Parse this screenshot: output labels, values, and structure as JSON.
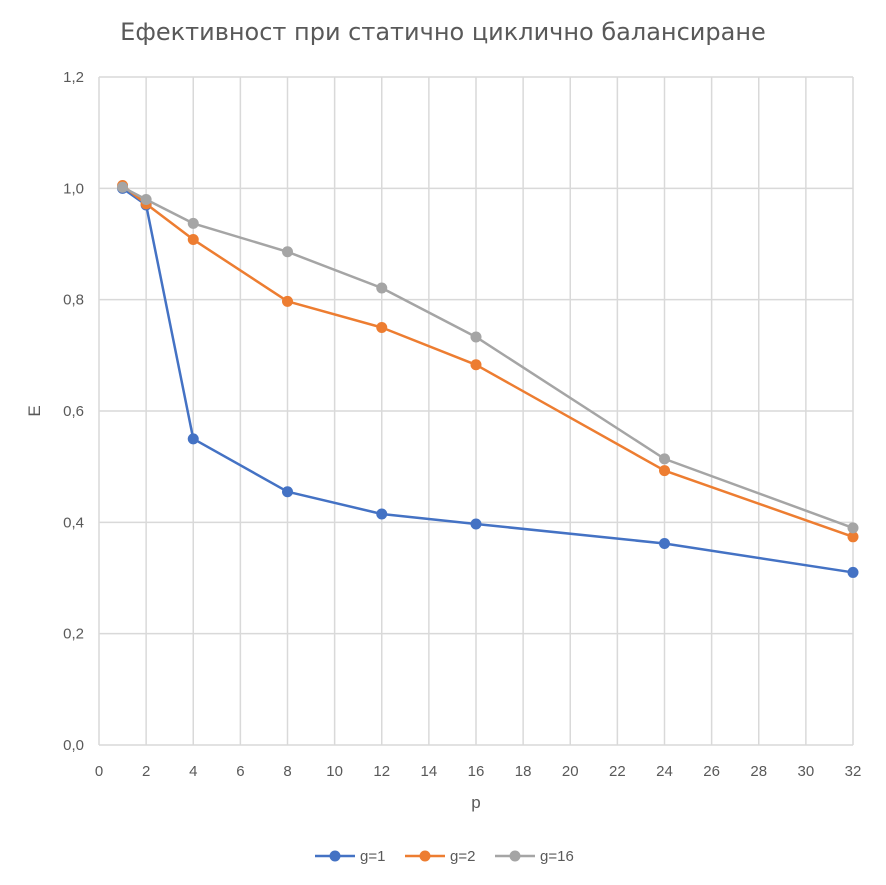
{
  "chart_data": {
    "type": "line",
    "title": "Ефективност при статично циклично балансиране",
    "xlabel": "p",
    "ylabel": "E",
    "xlim": [
      0,
      32
    ],
    "ylim": [
      0,
      1.2
    ],
    "x_ticks": [
      "0",
      "2",
      "4",
      "6",
      "8",
      "10",
      "12",
      "14",
      "16",
      "18",
      "20",
      "22",
      "24",
      "26",
      "28",
      "30",
      "32"
    ],
    "y_ticks": [
      "0,0",
      "0,2",
      "0,4",
      "0,6",
      "0,8",
      "1,0",
      "1,2"
    ],
    "grid": true,
    "legend_position": "bottom",
    "series": [
      {
        "name": "g=1",
        "color": "#4472C4",
        "points": [
          [
            1,
            1.0
          ],
          [
            2,
            0.97
          ],
          [
            4,
            0.55
          ],
          [
            8,
            0.455
          ],
          [
            12,
            0.415
          ],
          [
            16,
            0.397
          ],
          [
            24,
            0.362
          ],
          [
            32,
            0.31
          ]
        ]
      },
      {
        "name": "g=2",
        "color": "#ED7D31",
        "points": [
          [
            1,
            1.005
          ],
          [
            2,
            0.972
          ],
          [
            4,
            0.908
          ],
          [
            8,
            0.797
          ],
          [
            12,
            0.75
          ],
          [
            16,
            0.683
          ],
          [
            24,
            0.493
          ],
          [
            32,
            0.374
          ]
        ]
      },
      {
        "name": "g=16",
        "color": "#A5A5A5",
        "points": [
          [
            1,
            1.002
          ],
          [
            2,
            0.98
          ],
          [
            4,
            0.937
          ],
          [
            8,
            0.886
          ],
          [
            12,
            0.821
          ],
          [
            16,
            0.733
          ],
          [
            24,
            0.514
          ],
          [
            32,
            0.39
          ]
        ]
      }
    ]
  }
}
